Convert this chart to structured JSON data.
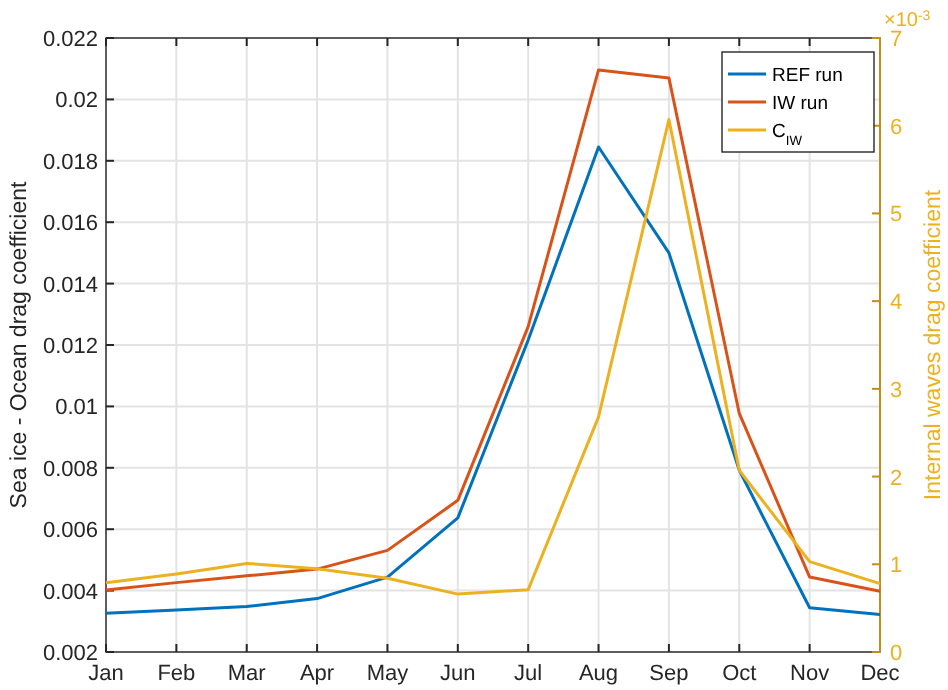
{
  "chart_data": {
    "type": "line",
    "categories": [
      "Jan",
      "Feb",
      "Mar",
      "Apr",
      "May",
      "Jun",
      "Jul",
      "Aug",
      "Sep",
      "Oct",
      "Nov",
      "Dec"
    ],
    "ylabel": "Sea ice - Ocean drag coefficient",
    "y2label": "Internal waves drag coefficient",
    "ylim": [
      0.002,
      0.022
    ],
    "yticks": [
      0.002,
      0.004,
      0.006,
      0.008,
      0.01,
      0.012,
      0.014,
      0.016,
      0.018,
      0.02,
      0.022
    ],
    "y2lim": [
      0,
      7
    ],
    "y2ticks": [
      0,
      1,
      2,
      3,
      4,
      5,
      6,
      7
    ],
    "annotations": [
      "×10$^{-3}$"
    ],
    "grid": true,
    "legend": "top right",
    "series": [
      {
        "name": "REF run",
        "color": "#0072bd",
        "values": [
          0.00326,
          0.00337,
          0.00348,
          0.00374,
          0.00444,
          0.00637,
          0.01216,
          0.01845,
          0.015,
          0.00792,
          0.00344,
          0.00322
        ]
      },
      {
        "name": "IW run",
        "color": "#d95319",
        "values": [
          0.00402,
          0.00426,
          0.00448,
          0.0047,
          0.00531,
          0.00694,
          0.0126,
          0.02096,
          0.0207,
          0.00977,
          0.00444,
          0.00398
        ]
      },
      {
        "name": "C$_{IW}$",
        "color": "#edb120",
        "axis": "y2",
        "values": [
          0.79,
          0.89,
          1.01,
          0.95,
          0.84,
          0.66,
          0.71,
          2.68,
          6.07,
          2.07,
          1.03,
          0.78
        ]
      }
    ]
  }
}
